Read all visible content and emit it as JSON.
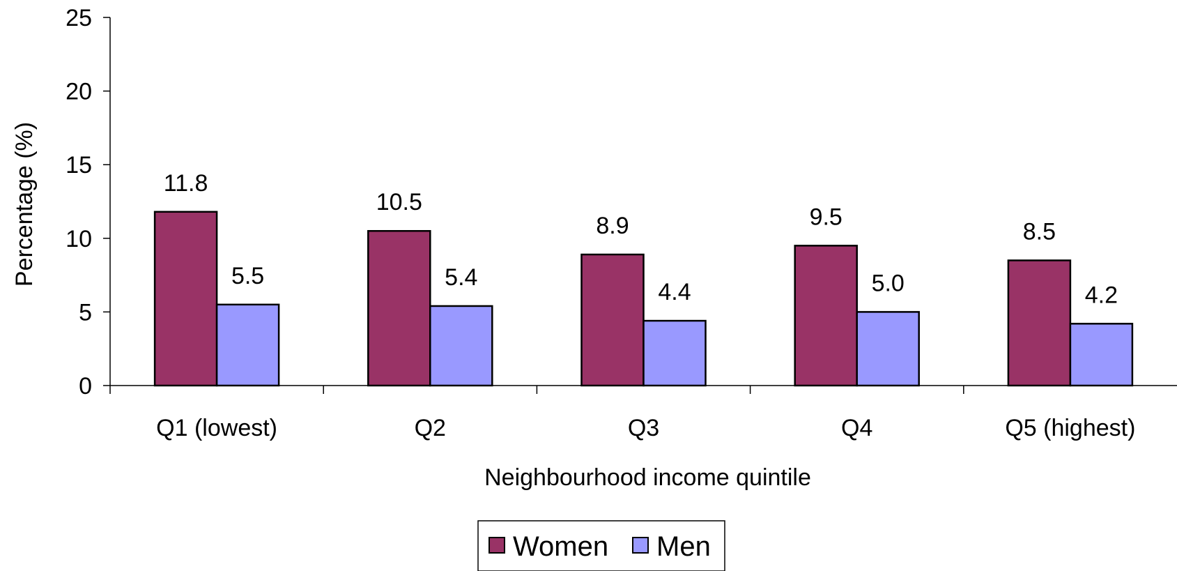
{
  "chart_data": {
    "type": "bar",
    "title": "",
    "xlabel": "Neighbourhood income quintile",
    "ylabel": "Percentage (%)",
    "categories": [
      "Q1 (lowest)",
      "Q2",
      "Q3",
      "Q4",
      "Q5 (highest)"
    ],
    "series": [
      {
        "name": "Women",
        "color": "#993366",
        "values": [
          11.8,
          10.5,
          8.9,
          9.5,
          8.5
        ],
        "labels": [
          "11.8",
          "10.5",
          "8.9",
          "9.5",
          "8.5"
        ]
      },
      {
        "name": "Men",
        "color": "#9999FF",
        "values": [
          5.5,
          5.4,
          4.4,
          5.0,
          4.2
        ],
        "labels": [
          "5.5",
          "5.4",
          "4.4",
          "5.0",
          "4.2"
        ]
      }
    ],
    "ylim": [
      0,
      25
    ],
    "yticks": [
      0,
      5,
      10,
      15,
      20,
      25
    ],
    "ytick_labels": [
      "0",
      "5",
      "10",
      "15",
      "20",
      "25"
    ],
    "grid": false,
    "legend_position": "bottom-center"
  }
}
